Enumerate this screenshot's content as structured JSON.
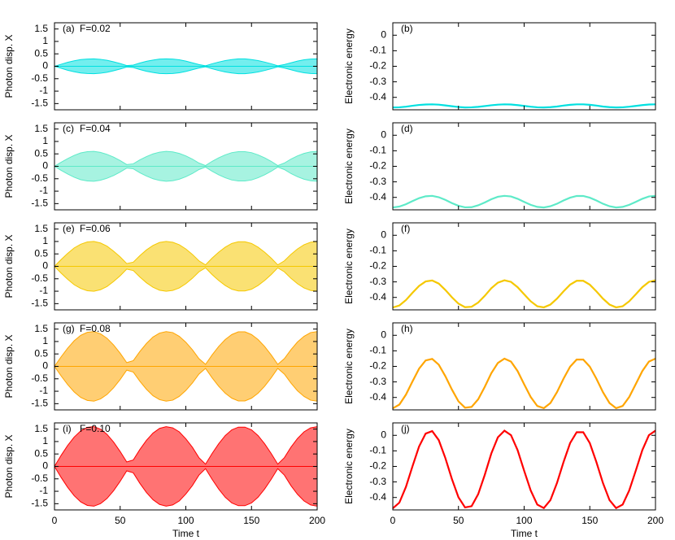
{
  "chart_data": [
    {
      "type": "area",
      "panel_label": "(a)",
      "param": "F=0.02",
      "ylabel": "Photon disp. X",
      "color": "#00e0e0",
      "xtick_labels": false,
      "x": [
        0,
        5,
        10,
        15,
        20,
        25,
        30,
        35,
        40,
        45,
        50,
        55,
        60,
        65,
        70,
        75,
        80,
        85,
        90,
        95,
        100,
        105,
        110,
        115,
        120,
        125,
        130,
        135,
        140,
        145,
        150,
        155,
        160,
        165,
        170,
        175,
        180,
        185,
        190,
        195,
        200
      ],
      "high": [
        0,
        0.08,
        0.16,
        0.22,
        0.27,
        0.29,
        0.3,
        0.28,
        0.24,
        0.18,
        0.11,
        0.03,
        0.05,
        0.13,
        0.2,
        0.25,
        0.29,
        0.3,
        0.29,
        0.26,
        0.21,
        0.14,
        0.07,
        0.02,
        0.1,
        0.17,
        0.23,
        0.27,
        0.3,
        0.3,
        0.27,
        0.23,
        0.17,
        0.1,
        0.02,
        0.07,
        0.14,
        0.21,
        0.26,
        0.29,
        0.3
      ],
      "low": [
        0,
        -0.08,
        -0.16,
        -0.22,
        -0.27,
        -0.29,
        -0.3,
        -0.28,
        -0.24,
        -0.18,
        -0.11,
        -0.03,
        -0.05,
        -0.13,
        -0.2,
        -0.25,
        -0.29,
        -0.3,
        -0.29,
        -0.26,
        -0.21,
        -0.14,
        -0.07,
        -0.02,
        -0.1,
        -0.17,
        -0.23,
        -0.27,
        -0.3,
        -0.3,
        -0.27,
        -0.23,
        -0.17,
        -0.1,
        -0.02,
        -0.07,
        -0.14,
        -0.21,
        -0.26,
        -0.29,
        -0.3
      ],
      "xlim": [
        0,
        200
      ],
      "xticks": [
        0,
        50,
        100,
        150,
        200
      ],
      "ylim": [
        -1.75,
        1.75
      ],
      "yticks": [
        1.5,
        1,
        0.5,
        0,
        -0.5,
        -1,
        -1.5
      ]
    },
    {
      "type": "line",
      "panel_label": "(b)",
      "ylabel": "Electronic energy",
      "color": "#00e0e0",
      "xtick_labels": false,
      "x": [
        0,
        5,
        10,
        15,
        20,
        25,
        30,
        35,
        40,
        45,
        50,
        55,
        60,
        65,
        70,
        75,
        80,
        85,
        90,
        95,
        100,
        105,
        110,
        115,
        120,
        125,
        130,
        135,
        140,
        145,
        150,
        155,
        160,
        165,
        170,
        175,
        180,
        185,
        190,
        195,
        200
      ],
      "values": [
        -0.465,
        -0.464,
        -0.46,
        -0.454,
        -0.449,
        -0.446,
        -0.445,
        -0.447,
        -0.452,
        -0.457,
        -0.462,
        -0.465,
        -0.464,
        -0.461,
        -0.456,
        -0.451,
        -0.447,
        -0.445,
        -0.446,
        -0.45,
        -0.455,
        -0.46,
        -0.464,
        -0.465,
        -0.463,
        -0.459,
        -0.453,
        -0.448,
        -0.445,
        -0.445,
        -0.448,
        -0.453,
        -0.459,
        -0.463,
        -0.465,
        -0.464,
        -0.46,
        -0.455,
        -0.45,
        -0.446,
        -0.445
      ],
      "xlim": [
        0,
        200
      ],
      "xticks": [
        0,
        50,
        100,
        150,
        200
      ],
      "ylim": [
        -0.48,
        0.08
      ],
      "yticks": [
        0,
        -0.1,
        -0.2,
        -0.3,
        -0.4
      ]
    },
    {
      "type": "area",
      "panel_label": "(c)",
      "param": "F=0.04",
      "ylabel": "Photon disp. X",
      "color": "#5eeac8",
      "xtick_labels": false,
      "x": [
        0,
        5,
        10,
        15,
        20,
        25,
        30,
        35,
        40,
        45,
        50,
        55,
        60,
        65,
        70,
        75,
        80,
        85,
        90,
        95,
        100,
        105,
        110,
        115,
        120,
        125,
        130,
        135,
        140,
        145,
        150,
        155,
        160,
        165,
        170,
        175,
        180,
        185,
        190,
        195,
        200
      ],
      "high": [
        0,
        0.16,
        0.31,
        0.44,
        0.54,
        0.59,
        0.6,
        0.56,
        0.48,
        0.37,
        0.23,
        0.07,
        0.1,
        0.26,
        0.39,
        0.5,
        0.57,
        0.6,
        0.58,
        0.52,
        0.42,
        0.29,
        0.13,
        0.03,
        0.2,
        0.34,
        0.46,
        0.55,
        0.59,
        0.59,
        0.55,
        0.46,
        0.34,
        0.2,
        0.03,
        0.13,
        0.29,
        0.42,
        0.52,
        0.58,
        0.6
      ],
      "low": [
        0,
        -0.16,
        -0.31,
        -0.44,
        -0.54,
        -0.59,
        -0.6,
        -0.56,
        -0.48,
        -0.37,
        -0.23,
        -0.07,
        -0.1,
        -0.26,
        -0.39,
        -0.5,
        -0.57,
        -0.6,
        -0.58,
        -0.52,
        -0.42,
        -0.29,
        -0.13,
        -0.03,
        -0.2,
        -0.34,
        -0.46,
        -0.55,
        -0.59,
        -0.59,
        -0.55,
        -0.46,
        -0.34,
        -0.2,
        -0.03,
        -0.13,
        -0.29,
        -0.42,
        -0.52,
        -0.58,
        -0.6
      ],
      "xlim": [
        0,
        200
      ],
      "xticks": [
        0,
        50,
        100,
        150,
        200
      ],
      "ylim": [
        -1.75,
        1.75
      ],
      "yticks": [
        1.5,
        1,
        0.5,
        0,
        -0.5,
        -1,
        -1.5
      ]
    },
    {
      "type": "line",
      "panel_label": "(d)",
      "ylabel": "Electronic energy",
      "color": "#5eeac8",
      "xtick_labels": false,
      "x": [
        0,
        5,
        10,
        15,
        20,
        25,
        30,
        35,
        40,
        45,
        50,
        55,
        60,
        65,
        70,
        75,
        80,
        85,
        90,
        95,
        100,
        105,
        110,
        115,
        120,
        125,
        130,
        135,
        140,
        145,
        150,
        155,
        160,
        165,
        170,
        175,
        180,
        185,
        190,
        195,
        200
      ],
      "values": [
        -0.465,
        -0.459,
        -0.444,
        -0.424,
        -0.405,
        -0.393,
        -0.39,
        -0.399,
        -0.416,
        -0.437,
        -0.454,
        -0.464,
        -0.463,
        -0.451,
        -0.433,
        -0.412,
        -0.396,
        -0.39,
        -0.394,
        -0.409,
        -0.429,
        -0.448,
        -0.461,
        -0.465,
        -0.457,
        -0.441,
        -0.42,
        -0.402,
        -0.391,
        -0.391,
        -0.402,
        -0.42,
        -0.441,
        -0.457,
        -0.465,
        -0.461,
        -0.448,
        -0.429,
        -0.409,
        -0.394,
        -0.39
      ],
      "xlim": [
        0,
        200
      ],
      "xticks": [
        0,
        50,
        100,
        150,
        200
      ],
      "ylim": [
        -0.48,
        0.08
      ],
      "yticks": [
        0,
        -0.1,
        -0.2,
        -0.3,
        -0.4
      ]
    },
    {
      "type": "area",
      "panel_label": "(e)",
      "param": "F=0.06",
      "ylabel": "Photon disp. X",
      "color": "#f5c800",
      "xtick_labels": false,
      "x": [
        0,
        5,
        10,
        15,
        20,
        25,
        30,
        35,
        40,
        45,
        50,
        55,
        60,
        65,
        70,
        75,
        80,
        85,
        90,
        95,
        100,
        105,
        110,
        115,
        120,
        125,
        130,
        135,
        140,
        145,
        150,
        155,
        160,
        165,
        170,
        175,
        180,
        185,
        190,
        195,
        200
      ],
      "high": [
        0,
        0.27,
        0.52,
        0.74,
        0.89,
        0.98,
        1.0,
        0.94,
        0.81,
        0.61,
        0.38,
        0.11,
        0.17,
        0.43,
        0.66,
        0.84,
        0.96,
        1.0,
        0.97,
        0.87,
        0.7,
        0.48,
        0.22,
        0.06,
        0.33,
        0.57,
        0.77,
        0.92,
        0.99,
        0.99,
        0.92,
        0.77,
        0.57,
        0.33,
        0.06,
        0.22,
        0.48,
        0.7,
        0.87,
        0.97,
        1.0
      ],
      "low": [
        0,
        -0.27,
        -0.52,
        -0.74,
        -0.89,
        -0.98,
        -1.0,
        -0.94,
        -0.81,
        -0.61,
        -0.38,
        -0.11,
        -0.17,
        -0.43,
        -0.66,
        -0.84,
        -0.96,
        -1.0,
        -0.97,
        -0.87,
        -0.7,
        -0.48,
        -0.22,
        -0.06,
        -0.33,
        -0.57,
        -0.77,
        -0.92,
        -0.99,
        -0.99,
        -0.92,
        -0.77,
        -0.57,
        -0.33,
        -0.06,
        -0.22,
        -0.48,
        -0.7,
        -0.87,
        -0.97,
        -1.0
      ],
      "xlim": [
        0,
        200
      ],
      "xticks": [
        0,
        50,
        100,
        150,
        200
      ],
      "ylim": [
        -1.75,
        1.75
      ],
      "yticks": [
        1.5,
        1,
        0.5,
        0,
        -0.5,
        -1,
        -1.5
      ]
    },
    {
      "type": "line",
      "panel_label": "(f)",
      "ylabel": "Electronic energy",
      "color": "#f5c800",
      "xtick_labels": false,
      "x": [
        0,
        5,
        10,
        15,
        20,
        25,
        30,
        35,
        40,
        45,
        50,
        55,
        60,
        65,
        70,
        75,
        80,
        85,
        90,
        95,
        100,
        105,
        110,
        115,
        120,
        125,
        130,
        135,
        140,
        145,
        150,
        155,
        160,
        165,
        170,
        175,
        180,
        185,
        190,
        195,
        200
      ],
      "values": [
        -0.465,
        -0.452,
        -0.417,
        -0.37,
        -0.326,
        -0.297,
        -0.291,
        -0.311,
        -0.352,
        -0.399,
        -0.44,
        -0.463,
        -0.46,
        -0.433,
        -0.39,
        -0.341,
        -0.305,
        -0.29,
        -0.3,
        -0.334,
        -0.38,
        -0.425,
        -0.457,
        -0.464,
        -0.446,
        -0.408,
        -0.361,
        -0.318,
        -0.293,
        -0.293,
        -0.318,
        -0.361,
        -0.408,
        -0.446,
        -0.464,
        -0.457,
        -0.425,
        -0.38,
        -0.334,
        -0.3,
        -0.29
      ],
      "xlim": [
        0,
        200
      ],
      "xticks": [
        0,
        50,
        100,
        150,
        200
      ],
      "ylim": [
        -0.48,
        0.08
      ],
      "yticks": [
        0,
        -0.1,
        -0.2,
        -0.3,
        -0.4
      ]
    },
    {
      "type": "area",
      "panel_label": "(g)",
      "param": "F=0.08",
      "ylabel": "Photon disp. X",
      "color": "#ffa500",
      "xtick_labels": false,
      "x": [
        0,
        5,
        10,
        15,
        20,
        25,
        30,
        35,
        40,
        45,
        50,
        55,
        60,
        65,
        70,
        75,
        80,
        85,
        90,
        95,
        100,
        105,
        110,
        115,
        120,
        125,
        130,
        135,
        140,
        145,
        150,
        155,
        160,
        165,
        170,
        175,
        180,
        185,
        190,
        195,
        200
      ],
      "high": [
        0,
        0.38,
        0.73,
        1.03,
        1.25,
        1.37,
        1.4,
        1.31,
        1.13,
        0.86,
        0.53,
        0.15,
        0.23,
        0.6,
        0.92,
        1.18,
        1.34,
        1.4,
        1.36,
        1.21,
        0.97,
        0.67,
        0.31,
        0.08,
        0.46,
        0.8,
        1.08,
        1.28,
        1.39,
        1.39,
        1.28,
        1.08,
        0.8,
        0.46,
        0.08,
        0.31,
        0.67,
        0.98,
        1.21,
        1.36,
        1.4
      ],
      "low": [
        0,
        -0.38,
        -0.73,
        -1.03,
        -1.25,
        -1.37,
        -1.4,
        -1.31,
        -1.13,
        -0.86,
        -0.53,
        -0.15,
        -0.23,
        -0.6,
        -0.92,
        -1.18,
        -1.34,
        -1.4,
        -1.36,
        -1.21,
        -0.97,
        -0.67,
        -0.31,
        -0.08,
        -0.46,
        -0.8,
        -1.08,
        -1.28,
        -1.39,
        -1.39,
        -1.28,
        -1.08,
        -0.8,
        -0.46,
        -0.08,
        -0.31,
        -0.67,
        -0.98,
        -1.21,
        -1.36,
        -1.4
      ],
      "xlim": [
        0,
        200
      ],
      "xticks": [
        0,
        50,
        100,
        150,
        200
      ],
      "ylim": [
        -1.75,
        1.75
      ],
      "yticks": [
        1.5,
        1,
        0.5,
        0,
        -0.5,
        -1,
        -1.5
      ]
    },
    {
      "type": "line",
      "panel_label": "(h)",
      "ylabel": "Electronic energy",
      "color": "#ffa500",
      "xtick_labels": false,
      "x": [
        0,
        5,
        10,
        15,
        20,
        25,
        30,
        35,
        40,
        45,
        50,
        55,
        60,
        65,
        70,
        75,
        80,
        85,
        90,
        95,
        100,
        105,
        110,
        115,
        120,
        125,
        130,
        135,
        140,
        145,
        150,
        155,
        160,
        165,
        170,
        175,
        180,
        185,
        190,
        195,
        200
      ],
      "values": [
        -0.47,
        -0.446,
        -0.382,
        -0.297,
        -0.215,
        -0.162,
        -0.152,
        -0.189,
        -0.263,
        -0.349,
        -0.425,
        -0.466,
        -0.461,
        -0.412,
        -0.332,
        -0.244,
        -0.178,
        -0.15,
        -0.169,
        -0.23,
        -0.315,
        -0.397,
        -0.455,
        -0.469,
        -0.436,
        -0.366,
        -0.279,
        -0.202,
        -0.156,
        -0.156,
        -0.202,
        -0.279,
        -0.366,
        -0.436,
        -0.469,
        -0.455,
        -0.397,
        -0.314,
        -0.23,
        -0.169,
        -0.15
      ],
      "xlim": [
        0,
        200
      ],
      "xticks": [
        0,
        50,
        100,
        150,
        200
      ],
      "ylim": [
        -0.48,
        0.08
      ],
      "yticks": [
        0,
        -0.1,
        -0.2,
        -0.3,
        -0.4
      ]
    },
    {
      "type": "area",
      "panel_label": "(i)",
      "param": "F=0.10",
      "ylabel": "Photon disp. X",
      "xlabel": "Time t",
      "color": "#ff0000",
      "xtick_labels": true,
      "x": [
        0,
        5,
        10,
        15,
        20,
        25,
        30,
        35,
        40,
        45,
        50,
        55,
        60,
        65,
        70,
        75,
        80,
        85,
        90,
        95,
        100,
        105,
        110,
        115,
        120,
        125,
        130,
        135,
        140,
        145,
        150,
        155,
        160,
        165,
        170,
        175,
        180,
        185,
        190,
        195,
        200
      ],
      "high": [
        0,
        0.44,
        0.84,
        1.18,
        1.43,
        1.57,
        1.6,
        1.5,
        1.29,
        0.98,
        0.6,
        0.18,
        0.26,
        0.68,
        1.05,
        1.34,
        1.53,
        1.6,
        1.55,
        1.39,
        1.11,
        0.77,
        0.35,
        0.09,
        0.52,
        0.91,
        1.24,
        1.47,
        1.58,
        1.58,
        1.47,
        1.24,
        0.91,
        0.52,
        0.09,
        0.35,
        0.77,
        1.12,
        1.39,
        1.55,
        1.6
      ],
      "low": [
        0,
        -0.44,
        -0.84,
        -1.18,
        -1.43,
        -1.57,
        -1.6,
        -1.5,
        -1.29,
        -0.98,
        -0.6,
        -0.18,
        -0.26,
        -0.68,
        -1.05,
        -1.34,
        -1.53,
        -1.6,
        -1.55,
        -1.39,
        -1.11,
        -0.77,
        -0.35,
        -0.09,
        -0.52,
        -0.91,
        -1.24,
        -1.47,
        -1.58,
        -1.58,
        -1.47,
        -1.24,
        -0.91,
        -0.52,
        -0.09,
        -0.35,
        -0.77,
        -1.12,
        -1.39,
        -1.55,
        -1.6
      ],
      "xlim": [
        0,
        200
      ],
      "xticks": [
        0,
        50,
        100,
        150,
        200
      ],
      "ylim": [
        -1.75,
        1.75
      ],
      "yticks": [
        1.5,
        1,
        0.5,
        0,
        -0.5,
        -1,
        -1.5
      ]
    },
    {
      "type": "line",
      "panel_label": "(j)",
      "ylabel": "Electronic energy",
      "xlabel": "Time t",
      "color": "#ff0000",
      "xtick_labels": true,
      "x": [
        0,
        5,
        10,
        15,
        20,
        25,
        30,
        35,
        40,
        45,
        50,
        55,
        60,
        65,
        70,
        75,
        80,
        85,
        90,
        95,
        100,
        105,
        110,
        115,
        120,
        125,
        130,
        135,
        140,
        145,
        150,
        155,
        160,
        165,
        170,
        175,
        180,
        185,
        190,
        195,
        200
      ],
      "values": [
        -0.47,
        -0.433,
        -0.332,
        -0.199,
        -0.072,
        0.011,
        0.027,
        -0.031,
        -0.146,
        -0.281,
        -0.399,
        -0.464,
        -0.456,
        -0.379,
        -0.255,
        -0.117,
        -0.013,
        0.03,
        0.001,
        -0.095,
        -0.228,
        -0.355,
        -0.446,
        -0.468,
        -0.417,
        -0.307,
        -0.172,
        -0.05,
        0.02,
        0.02,
        -0.05,
        -0.172,
        -0.307,
        -0.417,
        -0.468,
        -0.446,
        -0.355,
        -0.227,
        -0.095,
        0.001,
        0.03
      ],
      "xlim": [
        0,
        200
      ],
      "xticks": [
        0,
        50,
        100,
        150,
        200
      ],
      "ylim": [
        -0.48,
        0.08
      ],
      "yticks": [
        0,
        -0.1,
        -0.2,
        -0.3,
        -0.4
      ]
    }
  ]
}
